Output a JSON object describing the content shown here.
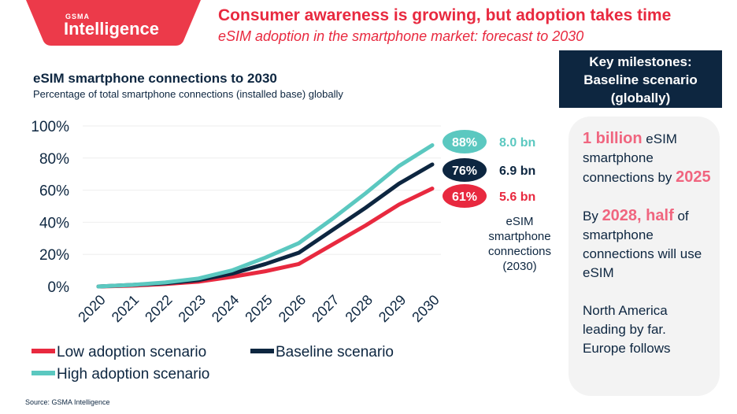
{
  "header": {
    "logo": {
      "brand_small": "GSMA",
      "brand_large": "Intelligence"
    },
    "title": "Consumer awareness is growing, but adoption takes time",
    "subtitle": "eSIM adoption in the smartphone market: forecast to 2030"
  },
  "chart_data": {
    "type": "line",
    "title": "eSIM smartphone connections to 2030",
    "subtitle": "Percentage of total smartphone connections (installed base) globally",
    "x": [
      "2020",
      "2021",
      "2022",
      "2023",
      "2024",
      "2025",
      "2026",
      "2027",
      "2028",
      "2029",
      "2030"
    ],
    "ylim": [
      0,
      100
    ],
    "yticks": [
      "0%",
      "20%",
      "40%",
      "60%",
      "80%",
      "100%"
    ],
    "grid": true,
    "legend_position": "bottom",
    "series": [
      {
        "name": "Low adoption scenario",
        "color": "#e8293f",
        "values": [
          0,
          0.5,
          1.5,
          3,
          6,
          9.5,
          14,
          26,
          38,
          51,
          61
        ]
      },
      {
        "name": "Baseline scenario",
        "color": "#0d2640",
        "values": [
          0,
          1,
          2,
          4,
          8,
          14,
          21,
          35,
          49,
          64,
          76
        ]
      },
      {
        "name": "High adoption scenario",
        "color": "#5bc8c0",
        "values": [
          0,
          1,
          2.5,
          5,
          10,
          18,
          27,
          42,
          58,
          75,
          88
        ]
      }
    ],
    "end_labels": [
      {
        "pct": "88%",
        "value": "8.0 bn",
        "color": "#5bc8c0"
      },
      {
        "pct": "76%",
        "value": "6.9 bn",
        "color": "#0d2640"
      },
      {
        "pct": "61%",
        "value": "5.6 bn",
        "color": "#e8293f"
      }
    ],
    "end_note": [
      "eSIM",
      "smartphone",
      "connections",
      "(2030)"
    ]
  },
  "milestones": {
    "heading": [
      "Key milestones:",
      "Baseline scenario",
      "(globally)"
    ],
    "m1": {
      "hl1": "1 billion",
      "t1": " eSIM smartphone connections by ",
      "hl2": "2025"
    },
    "m2": {
      "t0": "By ",
      "hl1": "2028, half",
      "t1": " of smartphone connections will use eSIM"
    },
    "m3": "North America leading by far. Europe follows"
  },
  "source": "Source: GSMA Intelligence"
}
